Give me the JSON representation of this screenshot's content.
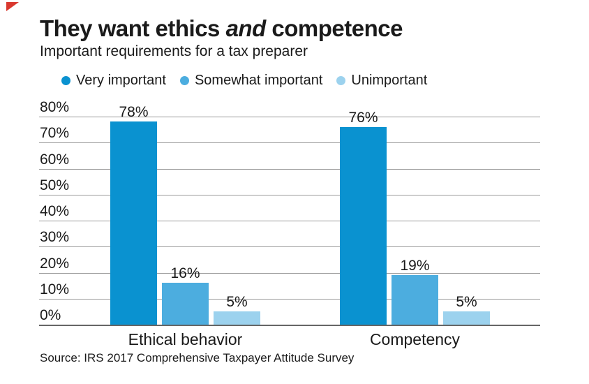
{
  "decor": {
    "corner_flag_color": "#d9382e"
  },
  "header": {
    "title_prefix": "They want ethics ",
    "title_italic": "and",
    "title_suffix": " competence",
    "subtitle": "Important requirements for a tax preparer"
  },
  "source": "Source: IRS 2017 Comprehensive Taxpayer Attitude Survey",
  "chart_data": {
    "type": "bar",
    "title": "They want ethics and competence",
    "subtitle": "Important requirements for a tax preparer",
    "categories": [
      "Ethical behavior",
      "Competency"
    ],
    "series": [
      {
        "name": "Very important",
        "color": "#0a92d0",
        "values": [
          78,
          76
        ]
      },
      {
        "name": "Somewhat important",
        "color": "#4caddf",
        "values": [
          16,
          19
        ]
      },
      {
        "name": "Unimportant",
        "color": "#9cd2ee",
        "values": [
          5,
          5
        ]
      }
    ],
    "value_suffix": "%",
    "ylim": [
      0,
      80
    ],
    "ytick_step": 10,
    "ytick_suffix": "%",
    "grid": true,
    "legend_position": "top",
    "source": "Source: IRS 2017 Comprehensive Taxpayer Attitude Survey"
  }
}
